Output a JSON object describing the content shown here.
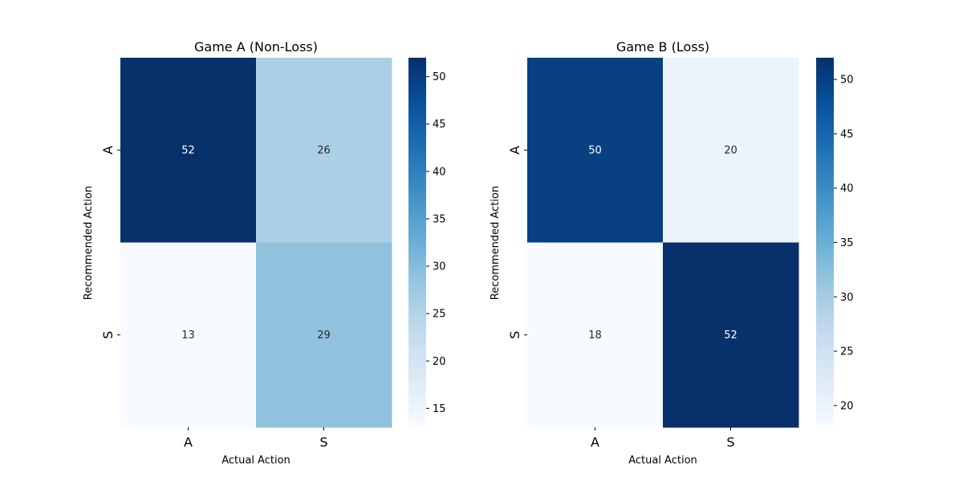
{
  "chart_data": [
    {
      "type": "heatmap",
      "title": "Game A (Non-Loss)",
      "xlabel": "Actual Action",
      "ylabel": "Recommended Action",
      "x_categories": [
        "A",
        "S"
      ],
      "y_categories": [
        "A",
        "S"
      ],
      "values": [
        [
          52,
          26
        ],
        [
          13,
          29
        ]
      ],
      "colorbar": {
        "min": 13,
        "max": 52,
        "ticks": [
          15,
          20,
          25,
          30,
          35,
          40,
          45,
          50
        ],
        "tick_labels": [
          "15",
          "20",
          "25",
          "30",
          "35",
          "40",
          "45",
          "50"
        ]
      },
      "colormap": "Blues",
      "grid": false
    },
    {
      "type": "heatmap",
      "title": "Game B (Loss)",
      "xlabel": "Actual Action",
      "ylabel": "Recommended Action",
      "x_categories": [
        "A",
        "S"
      ],
      "y_categories": [
        "A",
        "S"
      ],
      "values": [
        [
          50,
          20
        ],
        [
          18,
          52
        ]
      ],
      "colorbar": {
        "min": 18,
        "max": 52,
        "ticks": [
          20,
          25,
          30,
          35,
          40,
          45,
          50
        ],
        "tick_labels": [
          "20",
          "25",
          "30",
          "35",
          "40",
          "45",
          "50"
        ]
      },
      "colormap": "Blues",
      "grid": false
    }
  ]
}
